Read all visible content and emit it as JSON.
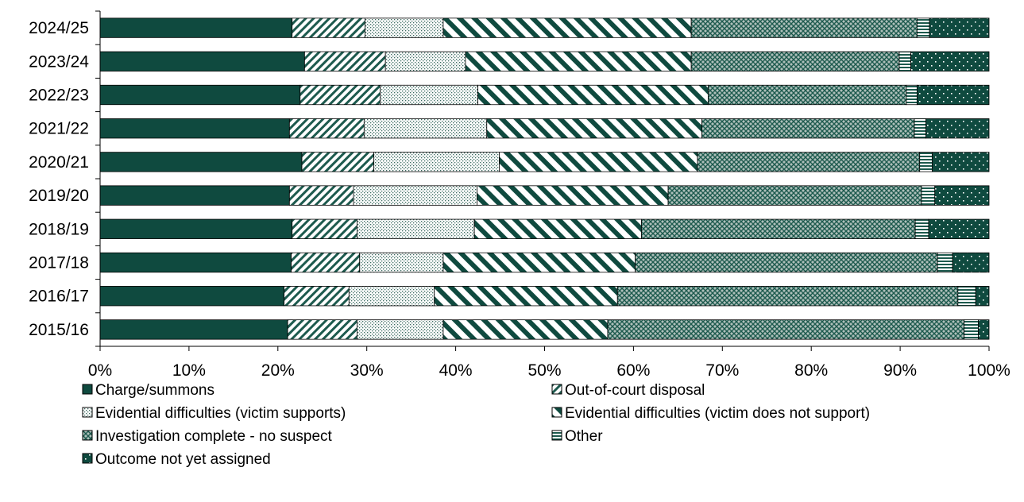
{
  "chart_data": {
    "type": "bar",
    "orientation": "horizontal",
    "stacked": "percent",
    "categories": [
      "2024/25",
      "2023/24",
      "2022/23",
      "2021/22",
      "2020/21",
      "2019/20",
      "2018/19",
      "2017/18",
      "2016/17",
      "2015/16"
    ],
    "series": [
      {
        "name": "Charge/summons",
        "pattern": "solid",
        "values": [
          21.6,
          23.0,
          22.5,
          21.3,
          22.7,
          21.3,
          21.6,
          21.5,
          20.7,
          21.1
        ]
      },
      {
        "name": "Out-of-court disposal",
        "pattern": "diagonal",
        "values": [
          8.2,
          9.1,
          9.0,
          8.4,
          8.1,
          7.2,
          7.3,
          7.7,
          7.3,
          7.8
        ]
      },
      {
        "name": "Evidential difficulties (victim supports)",
        "pattern": "dots",
        "values": [
          8.8,
          9.0,
          11.0,
          13.8,
          14.1,
          13.9,
          13.2,
          9.4,
          9.6,
          9.7
        ]
      },
      {
        "name": "Evidential difficulties (victim does not support)",
        "pattern": "wide-diagonal",
        "values": [
          27.9,
          25.4,
          25.9,
          24.2,
          22.3,
          21.5,
          18.8,
          21.6,
          20.6,
          18.5
        ]
      },
      {
        "name": "Investigation complete - no suspect",
        "pattern": "crosshatch",
        "values": [
          25.4,
          23.4,
          22.3,
          23.9,
          25.0,
          28.5,
          30.8,
          34.0,
          38.3,
          40.1
        ]
      },
      {
        "name": "Other",
        "pattern": "horizontal",
        "values": [
          1.4,
          1.3,
          1.2,
          1.3,
          1.4,
          1.5,
          1.5,
          1.7,
          2.0,
          1.6
        ]
      },
      {
        "name": "Outcome not yet assigned",
        "pattern": "sparse-dots",
        "values": [
          6.7,
          8.8,
          8.1,
          7.1,
          6.4,
          6.1,
          6.8,
          4.1,
          1.5,
          1.2
        ]
      }
    ],
    "xlim": [
      0,
      100
    ],
    "xticks": [
      "0%",
      "10%",
      "20%",
      "30%",
      "40%",
      "50%",
      "60%",
      "70%",
      "80%",
      "90%",
      "100%"
    ],
    "legend_position": "bottom",
    "grid": false,
    "colors": {
      "fill": "#0f4a3f",
      "ink": "#1d5a4e",
      "outline": "#000000",
      "paper": "#ffffff"
    }
  }
}
